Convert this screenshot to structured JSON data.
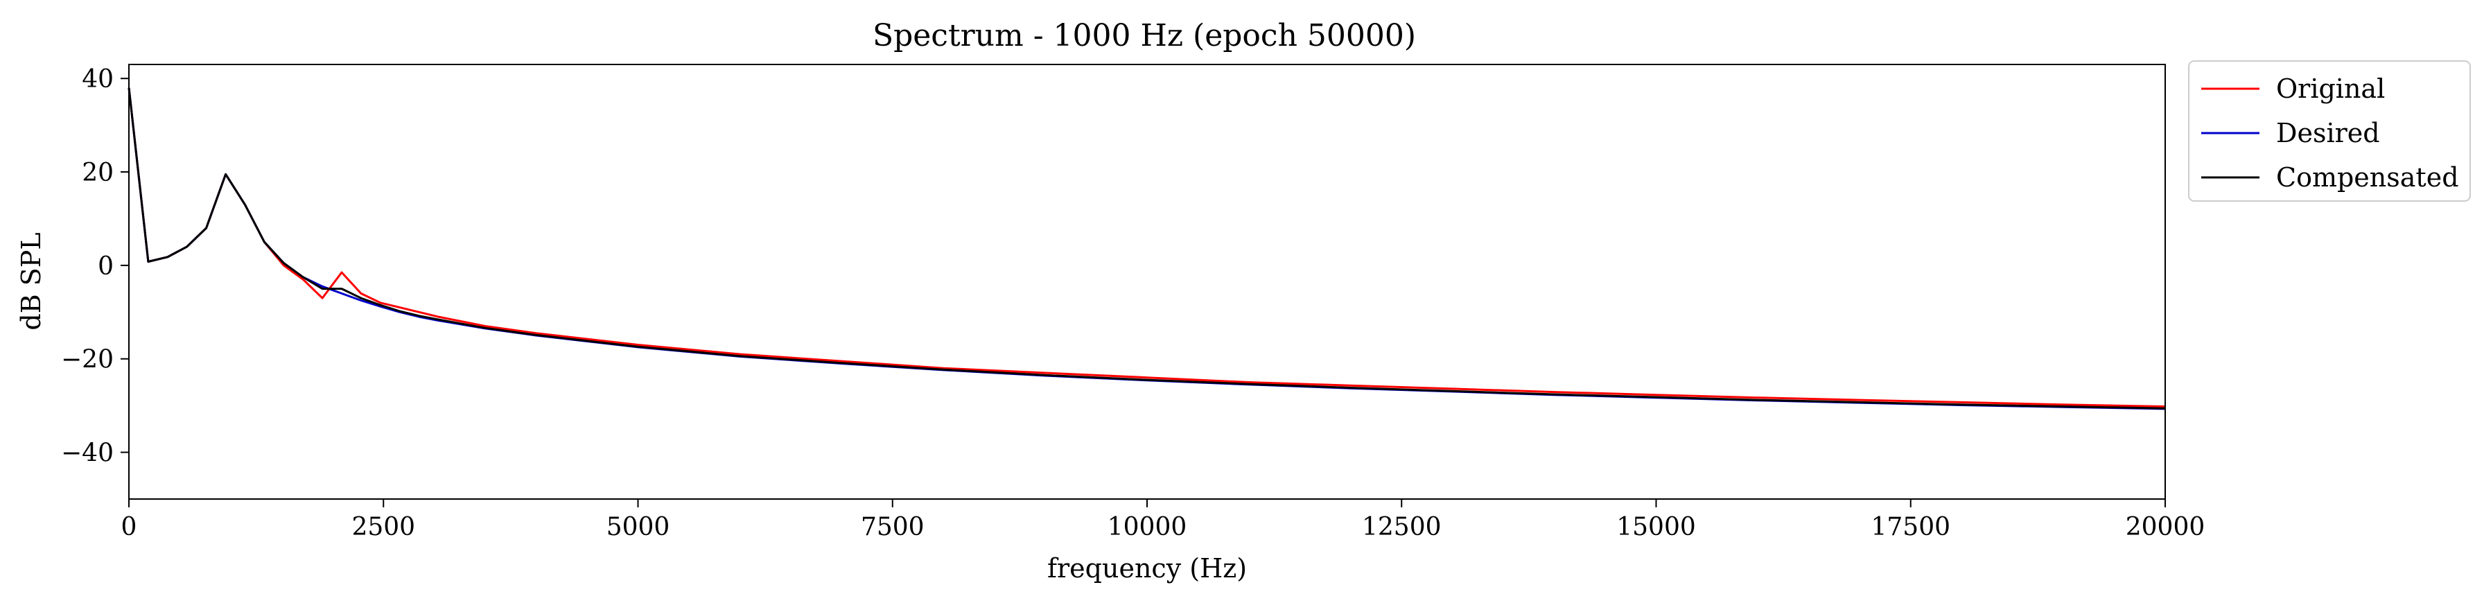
{
  "chart_data": {
    "type": "line",
    "title": "Spectrum - 1000 Hz (epoch 50000)",
    "xlabel": "frequency (Hz)",
    "ylabel": "dB SPL",
    "xlim": [
      0,
      20000
    ],
    "ylim": [
      -50,
      43
    ],
    "xticks": [
      0,
      2500,
      5000,
      7500,
      10000,
      12500,
      15000,
      17500,
      20000
    ],
    "yticks": [
      -40,
      -20,
      0,
      20,
      40
    ],
    "xtick_labels": [
      "0",
      "2500",
      "5000",
      "7500",
      "10000",
      "12500",
      "15000",
      "17500",
      "20000"
    ],
    "ytick_labels": [
      "−40",
      "−20",
      "0",
      "20",
      "40"
    ],
    "grid": false,
    "legend_position": "outside-top-right",
    "series": [
      {
        "name": "Original",
        "color": "#ff0000",
        "x": [
          0,
          190,
          380,
          570,
          760,
          950,
          1140,
          1330,
          1520,
          1710,
          1900,
          2090,
          2280,
          2470,
          2660,
          2850,
          3040,
          3500,
          4000,
          5000,
          6000,
          7000,
          8000,
          9000,
          10000,
          11000,
          12000,
          13000,
          14000,
          15000,
          16000,
          17000,
          18000,
          19000,
          20000
        ],
        "y": [
          38,
          0.8,
          1.8,
          4,
          8,
          19.5,
          13,
          5,
          0,
          -3,
          -7,
          -1.5,
          -6,
          -8,
          -9,
          -10,
          -11,
          -13,
          -14.5,
          -17,
          -19,
          -20.5,
          -22,
          -23,
          -24,
          -25,
          -25.7,
          -26.4,
          -27.1,
          -27.7,
          -28.3,
          -28.8,
          -29.3,
          -29.8,
          -30.2
        ]
      },
      {
        "name": "Desired",
        "color": "#0000cc",
        "x": [
          0,
          190,
          380,
          570,
          760,
          950,
          1140,
          1330,
          1520,
          1710,
          1900,
          2090,
          2280,
          2470,
          2660,
          2850,
          3040,
          3500,
          4000,
          5000,
          6000,
          7000,
          8000,
          9000,
          10000,
          11000,
          12000,
          13000,
          14000,
          15000,
          16000,
          17000,
          18000,
          19000,
          20000
        ],
        "y": [
          38,
          0.8,
          1.8,
          4,
          8,
          19.5,
          13,
          5,
          0.5,
          -2.5,
          -4.5,
          -6,
          -7.5,
          -8.8,
          -10,
          -11,
          -11.8,
          -13.5,
          -15,
          -17.5,
          -19.5,
          -21,
          -22.4,
          -23.6,
          -24.6,
          -25.5,
          -26.3,
          -27,
          -27.7,
          -28.3,
          -28.9,
          -29.4,
          -29.9,
          -30.3,
          -30.7
        ]
      },
      {
        "name": "Compensated",
        "color": "#000000",
        "x": [
          0,
          190,
          380,
          570,
          760,
          950,
          1140,
          1330,
          1520,
          1710,
          1900,
          2090,
          2280,
          2470,
          2660,
          2850,
          3040,
          3500,
          4000,
          5000,
          6000,
          7000,
          8000,
          9000,
          10000,
          11000,
          12000,
          13000,
          14000,
          15000,
          16000,
          17000,
          18000,
          19000,
          20000
        ],
        "y": [
          38,
          0.8,
          1.8,
          4,
          8,
          19.5,
          13,
          5,
          0.5,
          -2.5,
          -5,
          -5,
          -7,
          -8.5,
          -9.8,
          -10.8,
          -11.6,
          -13.4,
          -14.9,
          -17.4,
          -19.4,
          -20.9,
          -22.3,
          -23.5,
          -24.5,
          -25.4,
          -26.2,
          -26.9,
          -27.6,
          -28.2,
          -28.8,
          -29.3,
          -29.8,
          -30.2,
          -30.6
        ]
      }
    ]
  }
}
